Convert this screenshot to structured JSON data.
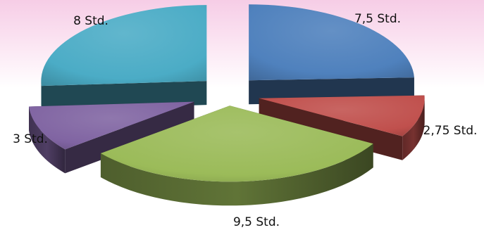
{
  "chart_data": {
    "type": "pie",
    "style": "3d-exploded",
    "legend": "none",
    "slices": [
      {
        "label": "7,5 Std.",
        "value": 7.5,
        "color": "#4f81bd"
      },
      {
        "label": "2,75 Std.",
        "value": 2.75,
        "color": "#c0504d"
      },
      {
        "label": "9,5 Std.",
        "value": 9.5,
        "color": "#9bbb59"
      },
      {
        "label": "3 Std.",
        "value": 3,
        "color": "#8064a2"
      },
      {
        "label": "8 Std.",
        "value": 8,
        "color": "#4bacc6"
      }
    ]
  }
}
